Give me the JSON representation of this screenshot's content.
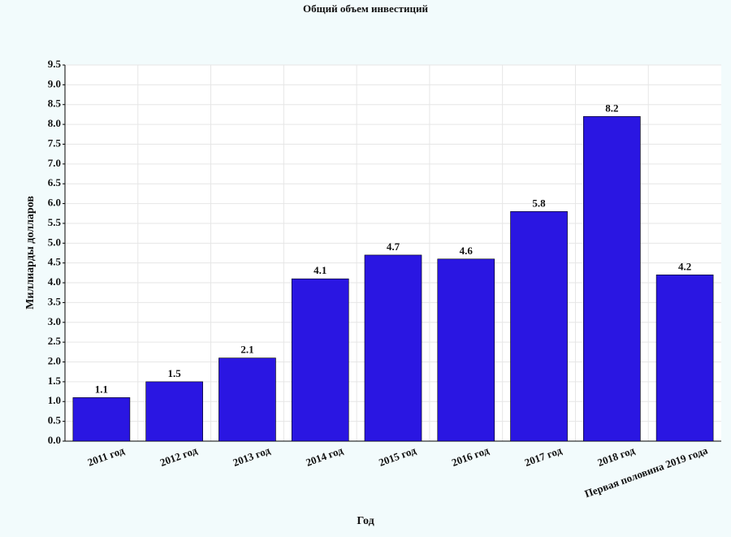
{
  "chart_data": {
    "type": "bar",
    "title": "Общий объем инвестиций",
    "x_label": "Год",
    "y_label": "Миллиарды долларов",
    "categories": [
      "2011 год",
      "2012 год",
      "2013 год",
      "2014 год",
      "2015 год",
      "2016 год",
      "2017 год",
      "2018 год",
      "Первая половина 2019 года"
    ],
    "values": [
      1.1,
      1.5,
      2.1,
      4.1,
      4.7,
      4.6,
      5.8,
      8.2,
      4.2
    ],
    "color": "#2a16e2",
    "ylim": [
      0,
      9.5
    ],
    "yticks": [
      {
        "value": 0,
        "label": "0.0"
      },
      0.5,
      {
        "value": 1,
        "label": "1.0"
      },
      1.5,
      {
        "value": 2,
        "label": "2.0"
      },
      2.5,
      {
        "value": 3,
        "label": "3.0"
      },
      3.5,
      {
        "value": 4,
        "label": "4.0"
      },
      4.5,
      {
        "value": 5,
        "label": "5.0"
      },
      5.5,
      {
        "value": 6,
        "label": "6.0"
      },
      6.5,
      {
        "value": 7,
        "label": "7.0"
      },
      7.5,
      {
        "value": 8,
        "label": "8.0"
      },
      8.5,
      {
        "value": 9,
        "label": "9.0"
      },
      9.5
    ],
    "grid": true
  }
}
